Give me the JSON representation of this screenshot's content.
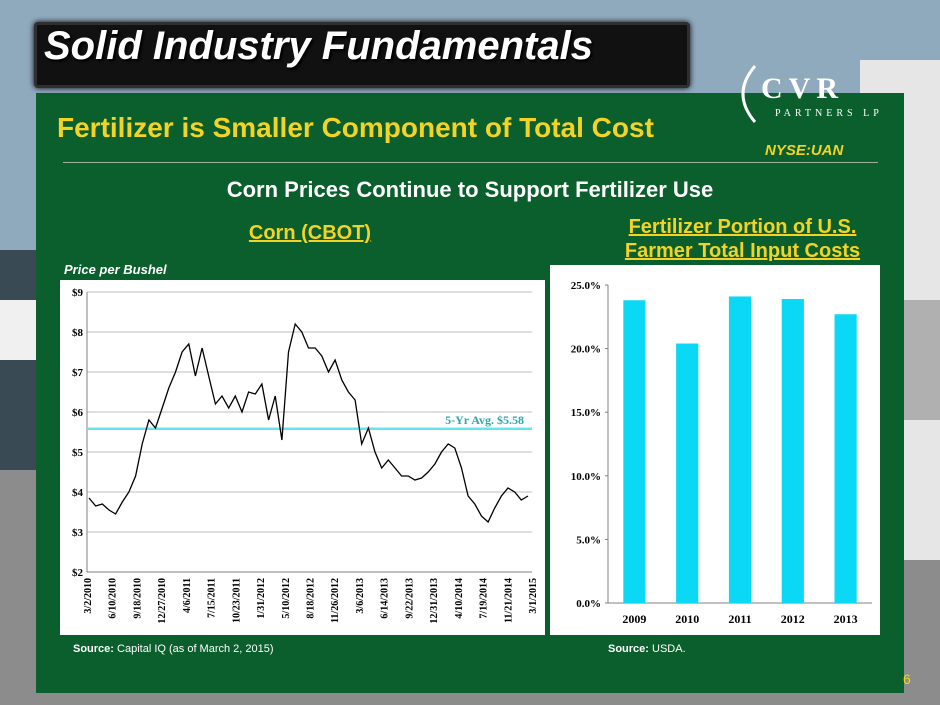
{
  "slide": {
    "title": "Solid Industry Fundamentals",
    "subtitle": "Fertilizer is Smaller Component of Total Cost",
    "ticker": "NYSE:UAN",
    "logo_main": "CVR",
    "logo_sub": "PARTNERS LP",
    "headline": "Corn Prices Continue to Support Fertilizer Use",
    "page_number": "6"
  },
  "sources": {
    "left_label": "Source:",
    "left_text": " Capital IQ (as of March 2, 2015)",
    "right_label": "Source:",
    "right_text": " USDA."
  },
  "colors": {
    "background_green": "#0a5f2c",
    "accent_yellow": "#f2d326",
    "line_corn": "#000000",
    "avg_line": "#62e8ec",
    "bar_fill": "#0ad8f5"
  },
  "chart_data": [
    {
      "type": "line",
      "title": "Corn (CBOT)",
      "ylabel": "Price per Bushel",
      "ylim": [
        2,
        9
      ],
      "yticks": [
        "$2",
        "$3",
        "$4",
        "$5",
        "$6",
        "$7",
        "$8",
        "$9"
      ],
      "xticks": [
        "3/2/2010",
        "6/10/2010",
        "9/18/2010",
        "12/27/2010",
        "4/6/2011",
        "7/15/2011",
        "10/23/2011",
        "1/31/2012",
        "5/10/2012",
        "8/18/2012",
        "11/26/2012",
        "3/6/2013",
        "6/14/2013",
        "9/22/2013",
        "12/31/2013",
        "4/10/2014",
        "7/19/2014",
        "11/21/2014",
        "3/1/2015"
      ],
      "average": {
        "label": "5-Yr Avg. $5.58",
        "value": 5.58
      },
      "values": [
        3.85,
        3.65,
        3.7,
        3.55,
        3.45,
        3.75,
        4.0,
        4.4,
        5.2,
        5.8,
        5.6,
        6.1,
        6.6,
        7.0,
        7.5,
        7.7,
        6.9,
        7.6,
        6.9,
        6.2,
        6.4,
        6.1,
        6.4,
        6.0,
        6.5,
        6.45,
        6.7,
        5.8,
        6.4,
        5.3,
        7.5,
        8.2,
        8.0,
        7.6,
        7.6,
        7.4,
        7.0,
        7.3,
        6.8,
        6.5,
        6.3,
        5.2,
        5.6,
        5.0,
        4.6,
        4.8,
        4.6,
        4.4,
        4.4,
        4.3,
        4.35,
        4.5,
        4.7,
        5.0,
        5.2,
        5.1,
        4.6,
        3.9,
        3.7,
        3.4,
        3.25,
        3.6,
        3.9,
        4.1,
        4.0,
        3.8,
        3.9
      ]
    },
    {
      "type": "bar",
      "title": "Fertilizer Portion of U.S. Farmer Total Input Costs",
      "title_lines": [
        "Fertilizer Portion of U.S.",
        "Farmer Total Input Costs"
      ],
      "categories": [
        "2009",
        "2010",
        "2011",
        "2012",
        "2013"
      ],
      "values": [
        23.8,
        20.4,
        24.1,
        23.9,
        22.7
      ],
      "ylim": [
        0,
        25
      ],
      "yticks": [
        "0.0%",
        "5.0%",
        "10.0%",
        "15.0%",
        "20.0%",
        "25.0%"
      ]
    }
  ]
}
